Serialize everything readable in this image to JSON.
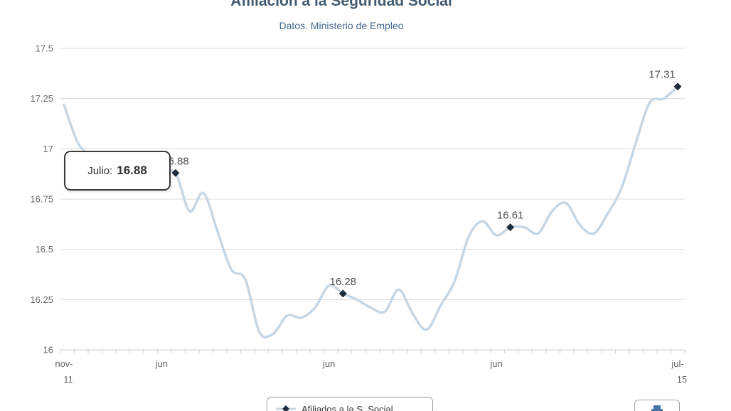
{
  "title": "Afiliación a la Seguridad Social",
  "subtitle": "Datos. Ministerio de Empleo",
  "tooltip": {
    "label": "Julio:",
    "value": "16.88",
    "point_month_index": 8
  },
  "legend": {
    "series_label": "Afiliados a la S. Social"
  },
  "export_button": {
    "icon": "printer-icon"
  },
  "colors": {
    "title": "#435a70",
    "subtitle": "#44688e",
    "line": "#c7d6e3",
    "marker": "#1f2c3d",
    "grid": "#d9d9d9",
    "axis": "#c6ccd2",
    "axis_label": "#666666",
    "data_label": "#4f4f4f",
    "tooltip_border": "#3a3a3a",
    "tooltip_text": "#333333",
    "printer_icon": "#4673a3"
  },
  "chart_data": {
    "type": "line",
    "title": "Afiliación a la Seguridad Social",
    "subtitle": "Datos. Ministerio de Empleo",
    "xlabel": "",
    "ylabel": "",
    "ylim": [
      16,
      17.5
    ],
    "y_ticks": [
      16,
      16.25,
      16.5,
      16.75,
      17,
      17.25,
      17.5
    ],
    "grid": true,
    "legend_position": "bottom",
    "x_unit": "month",
    "x_ticks": [
      {
        "month_index": 0,
        "lines": [
          "nov-",
          "11"
        ]
      },
      {
        "month_index": 7,
        "lines": [
          "jun"
        ]
      },
      {
        "month_index": 19,
        "lines": [
          "jun"
        ]
      },
      {
        "month_index": 31,
        "lines": [
          "jun"
        ]
      },
      {
        "month_index": 44,
        "lines": [
          "jul-",
          "15"
        ]
      }
    ],
    "series": [
      {
        "name": "Afiliados a la S. Social",
        "values": [
          17.22,
          17.03,
          16.96,
          16.9,
          16.87,
          16.86,
          16.86,
          16.87,
          16.88,
          16.69,
          16.78,
          16.59,
          16.4,
          16.35,
          16.09,
          16.08,
          16.17,
          16.16,
          16.21,
          16.32,
          16.28,
          16.25,
          16.21,
          16.19,
          16.3,
          16.18,
          16.1,
          16.22,
          16.34,
          16.56,
          16.64,
          16.57,
          16.61,
          16.61,
          16.58,
          16.69,
          16.73,
          16.62,
          16.58,
          16.68,
          16.81,
          17.03,
          17.23,
          17.25,
          17.31
        ]
      }
    ],
    "labeled_points": [
      {
        "month_index": 8,
        "label": "16.88"
      },
      {
        "month_index": 20,
        "label": "16.28"
      },
      {
        "month_index": 32,
        "label": "16.61"
      },
      {
        "month_index": 44,
        "label": "17.31"
      }
    ]
  }
}
